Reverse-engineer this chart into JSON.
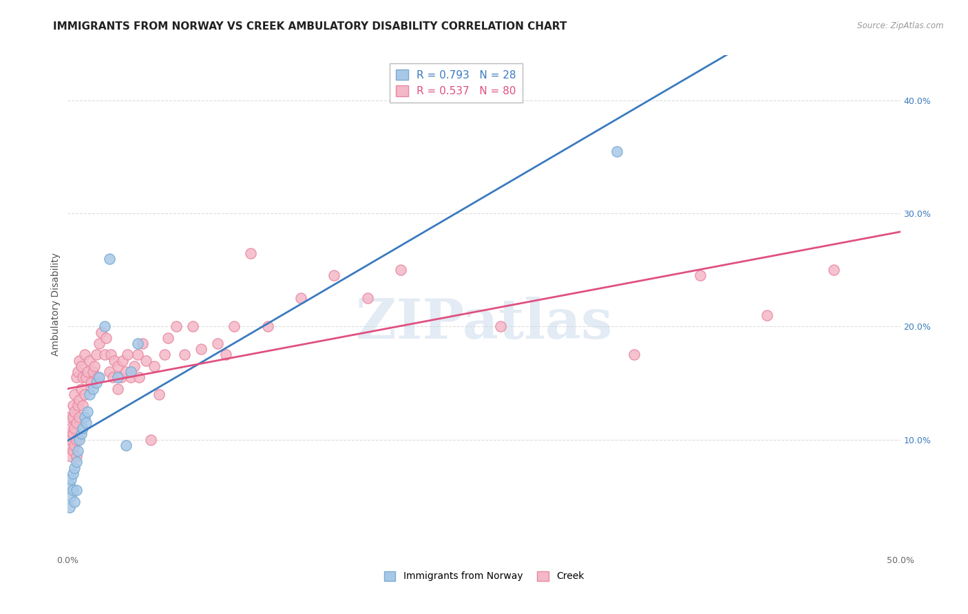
{
  "title": "IMMIGRANTS FROM NORWAY VS CREEK AMBULATORY DISABILITY CORRELATION CHART",
  "source": "Source: ZipAtlas.com",
  "ylabel": "Ambulatory Disability",
  "xlim": [
    0.0,
    0.5
  ],
  "ylim": [
    0.0,
    0.44
  ],
  "norway_color": "#a8c8e8",
  "creek_color": "#f4b8c8",
  "norway_edge_color": "#7baad0",
  "creek_edge_color": "#e888a0",
  "norway_line_color": "#3a7abf",
  "creek_line_color": "#e05080",
  "norway_R": 0.793,
  "norway_N": 28,
  "creek_R": 0.537,
  "creek_N": 80,
  "norway_scatter_x": [
    0.001,
    0.001,
    0.002,
    0.002,
    0.003,
    0.003,
    0.004,
    0.004,
    0.005,
    0.005,
    0.006,
    0.007,
    0.008,
    0.009,
    0.01,
    0.011,
    0.012,
    0.013,
    0.015,
    0.017,
    0.019,
    0.022,
    0.025,
    0.03,
    0.035,
    0.038,
    0.042,
    0.33
  ],
  "norway_scatter_y": [
    0.06,
    0.04,
    0.065,
    0.05,
    0.055,
    0.07,
    0.075,
    0.045,
    0.08,
    0.055,
    0.09,
    0.1,
    0.105,
    0.11,
    0.12,
    0.115,
    0.125,
    0.14,
    0.145,
    0.15,
    0.155,
    0.2,
    0.26,
    0.155,
    0.095,
    0.16,
    0.185,
    0.355
  ],
  "creek_scatter_x": [
    0.001,
    0.001,
    0.001,
    0.002,
    0.002,
    0.002,
    0.003,
    0.003,
    0.003,
    0.003,
    0.004,
    0.004,
    0.004,
    0.004,
    0.005,
    0.005,
    0.005,
    0.005,
    0.006,
    0.006,
    0.007,
    0.007,
    0.007,
    0.008,
    0.008,
    0.009,
    0.009,
    0.01,
    0.01,
    0.011,
    0.012,
    0.013,
    0.014,
    0.015,
    0.016,
    0.017,
    0.018,
    0.019,
    0.02,
    0.022,
    0.023,
    0.025,
    0.026,
    0.027,
    0.028,
    0.03,
    0.03,
    0.032,
    0.033,
    0.035,
    0.036,
    0.038,
    0.04,
    0.042,
    0.043,
    0.045,
    0.047,
    0.05,
    0.052,
    0.055,
    0.058,
    0.06,
    0.065,
    0.07,
    0.075,
    0.08,
    0.09,
    0.095,
    0.1,
    0.11,
    0.12,
    0.14,
    0.16,
    0.18,
    0.2,
    0.26,
    0.34,
    0.38,
    0.42,
    0.46
  ],
  "creek_scatter_y": [
    0.095,
    0.105,
    0.12,
    0.085,
    0.1,
    0.11,
    0.09,
    0.105,
    0.12,
    0.13,
    0.095,
    0.11,
    0.125,
    0.14,
    0.085,
    0.1,
    0.115,
    0.155,
    0.13,
    0.16,
    0.12,
    0.135,
    0.17,
    0.145,
    0.165,
    0.13,
    0.155,
    0.14,
    0.175,
    0.155,
    0.16,
    0.17,
    0.15,
    0.16,
    0.165,
    0.175,
    0.155,
    0.185,
    0.195,
    0.175,
    0.19,
    0.16,
    0.175,
    0.155,
    0.17,
    0.145,
    0.165,
    0.155,
    0.17,
    0.16,
    0.175,
    0.155,
    0.165,
    0.175,
    0.155,
    0.185,
    0.17,
    0.1,
    0.165,
    0.14,
    0.175,
    0.19,
    0.2,
    0.175,
    0.2,
    0.18,
    0.185,
    0.175,
    0.2,
    0.265,
    0.2,
    0.225,
    0.245,
    0.225,
    0.25,
    0.2,
    0.175,
    0.245,
    0.21,
    0.25
  ],
  "watermark_text": "ZIPatlas",
  "background_color": "#ffffff",
  "grid_color": "#dddddd",
  "title_fontsize": 11,
  "axis_label_fontsize": 10,
  "tick_fontsize": 9,
  "legend_fontsize": 11
}
